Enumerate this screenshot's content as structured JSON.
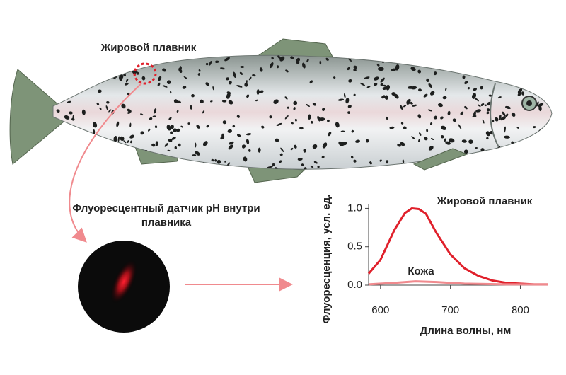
{
  "labels": {
    "fin": "Жировой плавник",
    "sensor": "Флуоресцентный датчик pH внутри плавника"
  },
  "chart_data": {
    "type": "line",
    "x_label": "Длина волны, нм",
    "y_label": "Флуоресценция, усл. ед.",
    "xlim": [
      583,
      840
    ],
    "ylim": [
      0,
      1.05
    ],
    "xticks": [
      600,
      700,
      800
    ],
    "yticks": [
      {
        "value": 0,
        "label": "0.0"
      },
      {
        "value": 0.5,
        "label": "0.5"
      },
      {
        "value": 1,
        "label": "1.0"
      }
    ],
    "grid": false,
    "series": [
      {
        "name": "Жировой плавник",
        "color": "#e0202b",
        "x": [
          583,
          600,
          620,
          635,
          645,
          655,
          665,
          680,
          700,
          720,
          740,
          760,
          780,
          800,
          820,
          840
        ],
        "values": [
          0.15,
          0.33,
          0.72,
          0.94,
          1.0,
          0.99,
          0.93,
          0.68,
          0.4,
          0.22,
          0.12,
          0.06,
          0.03,
          0.02,
          0.01,
          0.01
        ]
      },
      {
        "name": "Кожа",
        "color": "#f08a8e",
        "x": [
          583,
          620,
          650,
          680,
          720,
          780,
          840
        ],
        "values": [
          0.01,
          0.03,
          0.05,
          0.04,
          0.02,
          0.01,
          0.01
        ]
      }
    ]
  }
}
